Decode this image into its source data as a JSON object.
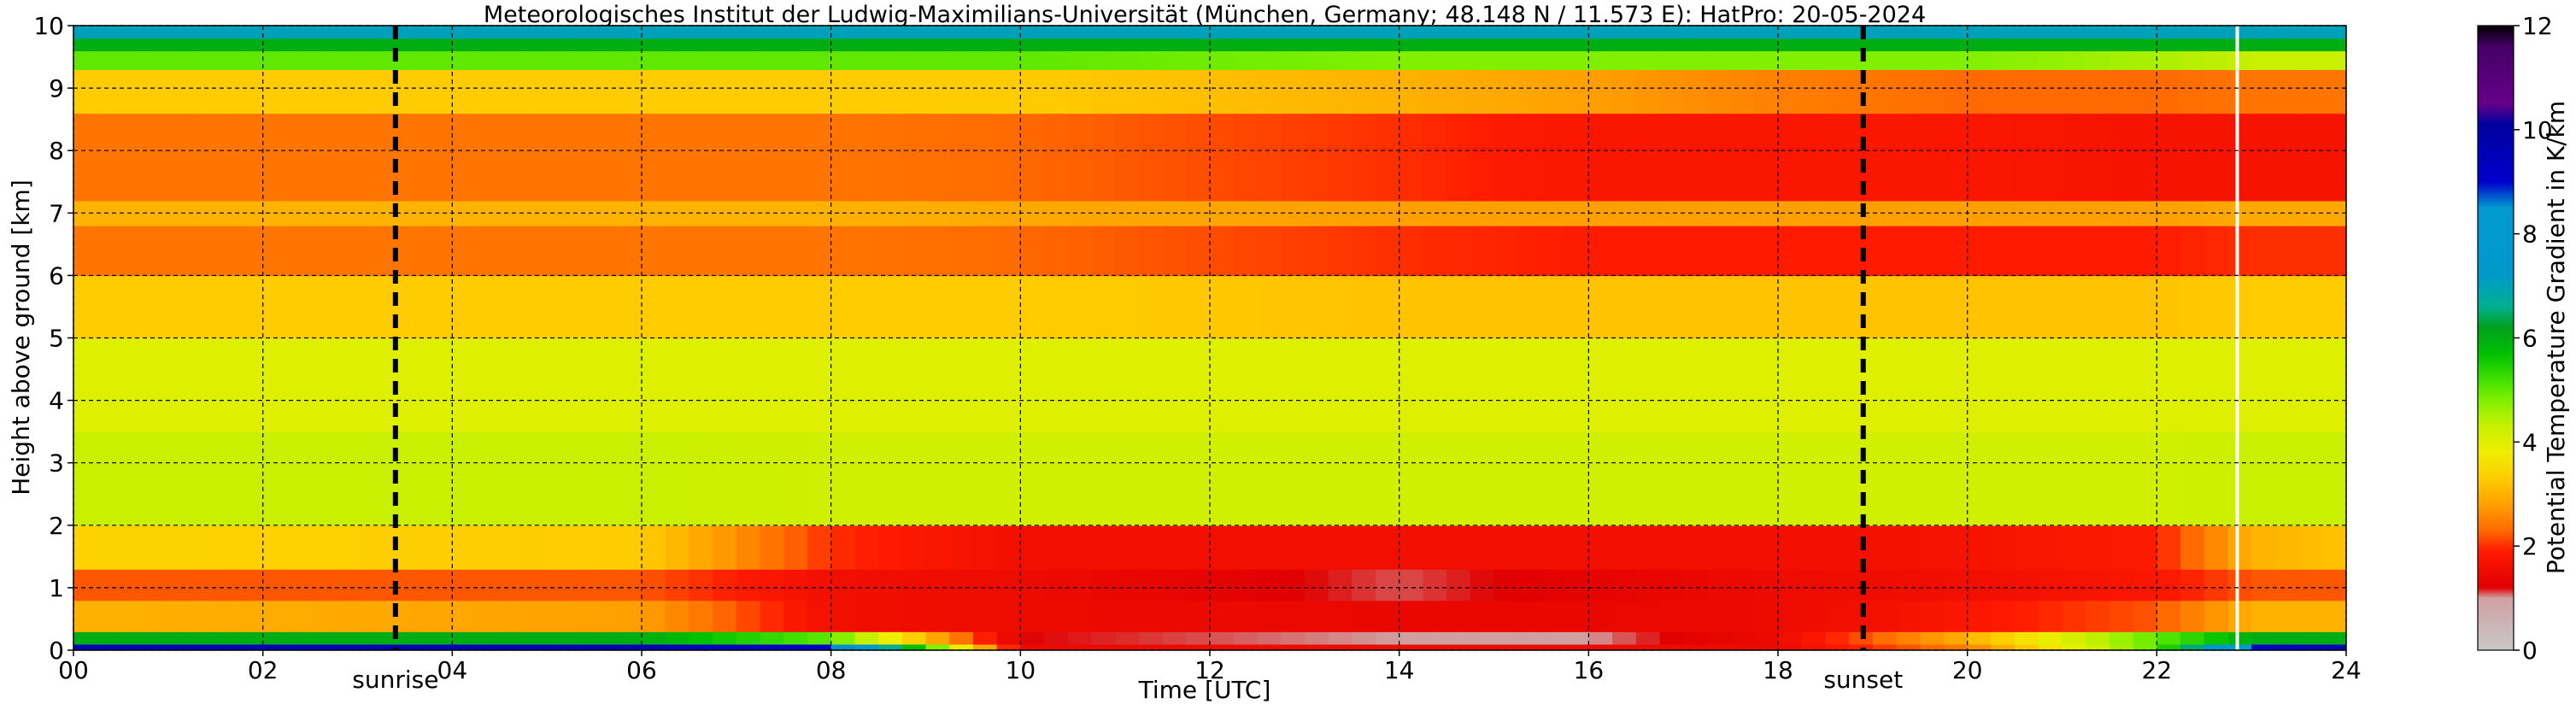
{
  "chart_data": {
    "type": "heatmap",
    "title": "Meteorologisches Institut der Ludwig-Maximilians-Universität (München, Germany; 48.148 N / 11.573 E):    HatPro: 20-05-2024",
    "xlabel": "Time [UTC]",
    "ylabel": "Height above ground [km]",
    "xlim": [
      0,
      24
    ],
    "ylim": [
      0,
      10
    ],
    "x_ticks": [
      "00",
      "02",
      "04",
      "06",
      "08",
      "10",
      "12",
      "14",
      "16",
      "18",
      "20",
      "22",
      "24"
    ],
    "y_ticks": [
      "0",
      "1",
      "2",
      "3",
      "4",
      "5",
      "6",
      "7",
      "8",
      "9",
      "10"
    ],
    "grid": true,
    "colorbar": {
      "label": "Potential Temperature Gradient in K/km",
      "range": [
        0,
        12
      ],
      "ticks": [
        "0",
        "2",
        "4",
        "6",
        "8",
        "10",
        "12"
      ],
      "stops": [
        {
          "v": 0.0,
          "c": "#c8c8c8"
        },
        {
          "v": 1.0,
          "c": "#d0a0a0"
        },
        {
          "v": 1.2,
          "c": "#e00000"
        },
        {
          "v": 1.9,
          "c": "#ff1a00"
        },
        {
          "v": 2.3,
          "c": "#ff6a00"
        },
        {
          "v": 2.8,
          "c": "#ffa000"
        },
        {
          "v": 3.3,
          "c": "#ffcc00"
        },
        {
          "v": 3.8,
          "c": "#eeee00"
        },
        {
          "v": 4.3,
          "c": "#c8f000"
        },
        {
          "v": 4.8,
          "c": "#80f000"
        },
        {
          "v": 5.2,
          "c": "#40e000"
        },
        {
          "v": 5.7,
          "c": "#00c000"
        },
        {
          "v": 6.2,
          "c": "#00a020"
        },
        {
          "v": 6.6,
          "c": "#00b090"
        },
        {
          "v": 7.2,
          "c": "#0099cc"
        },
        {
          "v": 8.5,
          "c": "#009ad0"
        },
        {
          "v": 9.0,
          "c": "#0000cc"
        },
        {
          "v": 10.1,
          "c": "#0000a0"
        },
        {
          "v": 10.5,
          "c": "#660088"
        },
        {
          "v": 11.6,
          "c": "#440066"
        },
        {
          "v": 12.0,
          "c": "#000000"
        }
      ]
    },
    "annotations": [
      {
        "label": "sunrise",
        "x": 3.4,
        "style": "dashed-vertical"
      },
      {
        "label": "sunset",
        "x": 18.9,
        "style": "dashed-vertical"
      }
    ],
    "data_gap_x": 22.85,
    "gradient_field": {
      "description_times": [
        0,
        6,
        8,
        10,
        14,
        16,
        18,
        20,
        22,
        23,
        24
      ],
      "layers_km": [
        {
          "z": [
            0.0,
            0.1
          ],
          "values": [
            9.5,
            9.5,
            9.0,
            1.5,
            1.5,
            1.5,
            1.5,
            2.5,
            5.0,
            9.0,
            9.5
          ]
        },
        {
          "z": [
            0.1,
            0.3
          ],
          "values": [
            6.0,
            6.0,
            5.0,
            1.2,
            1.0,
            1.0,
            1.5,
            3.0,
            5.0,
            6.0,
            6.0
          ]
        },
        {
          "z": [
            0.3,
            0.8
          ],
          "values": [
            3.0,
            2.8,
            1.6,
            1.5,
            1.4,
            1.4,
            1.5,
            1.8,
            2.2,
            3.0,
            3.0
          ]
        },
        {
          "z": [
            0.8,
            1.3
          ],
          "values": [
            2.2,
            2.2,
            1.6,
            1.5,
            1.1,
            1.3,
            1.5,
            1.6,
            1.8,
            2.2,
            2.2
          ]
        },
        {
          "z": [
            1.3,
            2.0
          ],
          "values": [
            3.4,
            3.3,
            2.0,
            1.6,
            1.6,
            1.6,
            1.6,
            1.7,
            1.9,
            3.0,
            3.2
          ]
        },
        {
          "z": [
            2.0,
            3.5
          ],
          "values": [
            4.3,
            4.3,
            4.2,
            4.2,
            4.2,
            4.2,
            4.2,
            4.2,
            4.2,
            4.3,
            4.3
          ]
        },
        {
          "z": [
            3.5,
            5.0
          ],
          "values": [
            4.0,
            4.0,
            4.0,
            4.0,
            4.0,
            4.0,
            4.0,
            4.0,
            4.0,
            4.0,
            4.0
          ]
        },
        {
          "z": [
            5.0,
            6.0
          ],
          "values": [
            3.3,
            3.3,
            3.3,
            3.3,
            3.2,
            3.2,
            3.2,
            3.2,
            3.2,
            3.3,
            3.3
          ]
        },
        {
          "z": [
            6.0,
            6.8
          ],
          "values": [
            2.4,
            2.4,
            2.4,
            2.3,
            2.0,
            1.9,
            1.9,
            1.9,
            1.9,
            2.0,
            2.0
          ]
        },
        {
          "z": [
            6.8,
            7.2
          ],
          "values": [
            3.0,
            3.0,
            3.0,
            2.9,
            2.8,
            2.8,
            2.8,
            2.8,
            2.8,
            2.9,
            2.9
          ]
        },
        {
          "z": [
            7.2,
            8.6
          ],
          "values": [
            2.4,
            2.4,
            2.4,
            2.3,
            2.0,
            1.8,
            1.8,
            1.8,
            1.7,
            1.7,
            1.7
          ]
        },
        {
          "z": [
            8.6,
            9.3
          ],
          "values": [
            3.3,
            3.3,
            3.3,
            3.3,
            3.0,
            2.8,
            2.5,
            2.3,
            2.3,
            2.4,
            2.4
          ]
        },
        {
          "z": [
            9.3,
            9.6
          ],
          "values": [
            5.0,
            5.0,
            5.0,
            5.0,
            4.8,
            4.8,
            4.8,
            4.8,
            4.5,
            4.3,
            4.3
          ]
        },
        {
          "z": [
            9.6,
            9.8
          ],
          "values": [
            6.0,
            6.0,
            6.0,
            6.0,
            6.0,
            6.0,
            6.0,
            6.0,
            6.0,
            6.0,
            6.0
          ]
        },
        {
          "z": [
            9.8,
            10.0
          ],
          "values": [
            7.0,
            7.0,
            7.0,
            7.0,
            7.0,
            7.0,
            7.0,
            7.0,
            7.0,
            7.0,
            7.0
          ]
        }
      ]
    }
  }
}
